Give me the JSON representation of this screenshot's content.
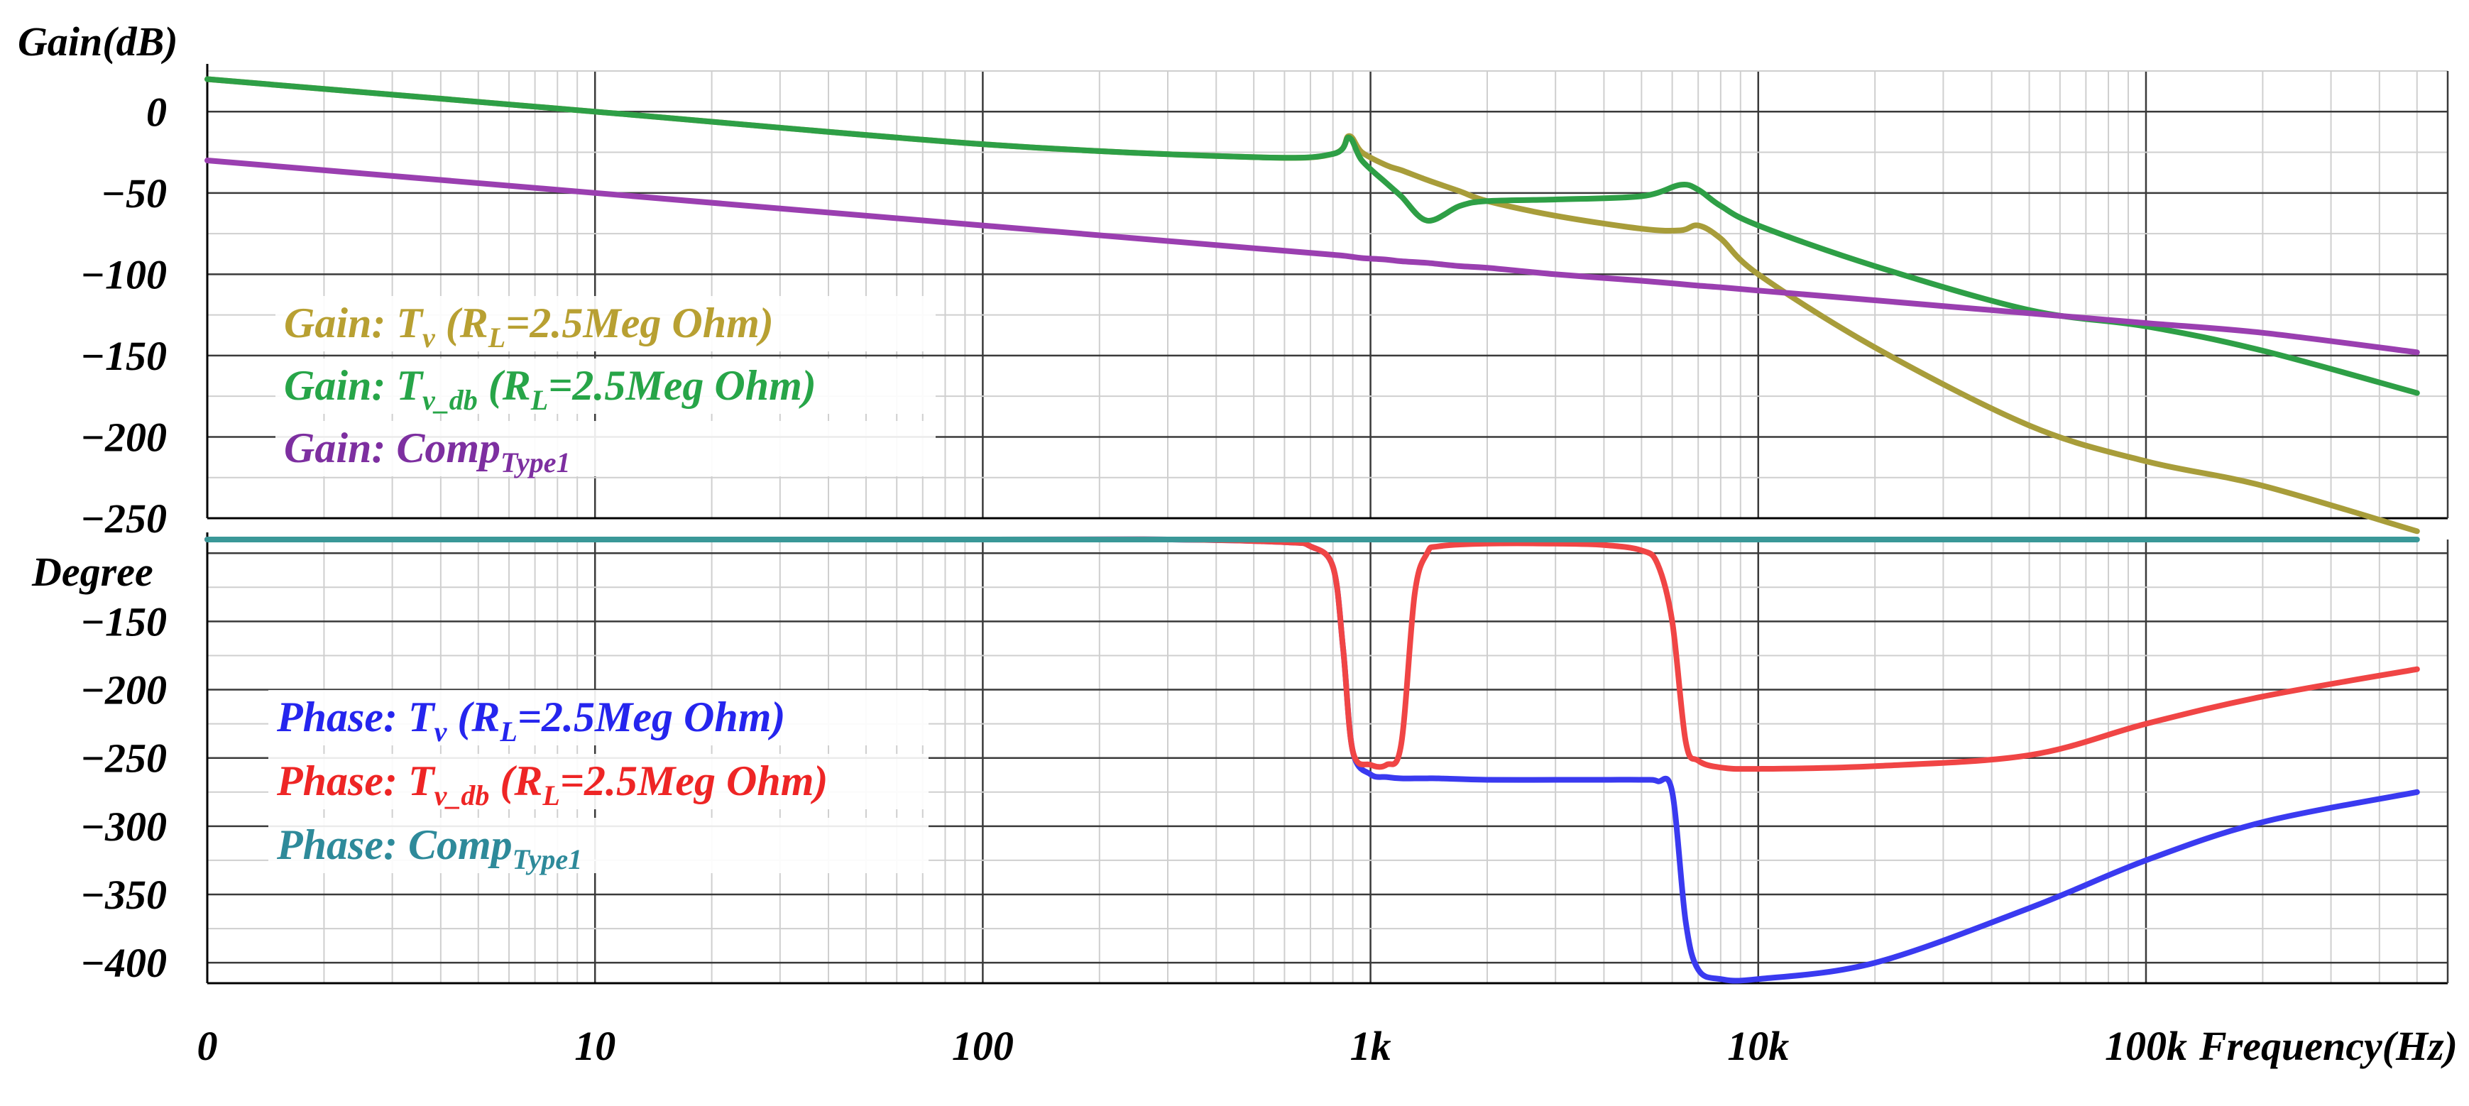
{
  "chart_data": [
    {
      "type": "line",
      "title": "Gain",
      "ylabel": "Gain(dB)",
      "xlabel": "",
      "x_scale": "log",
      "x": [
        1,
        10,
        100,
        500,
        800,
        880,
        950,
        1100,
        1200,
        1400,
        1700,
        2000,
        3000,
        5000,
        6300,
        7000,
        8000,
        10000,
        20000,
        50000,
        100000,
        200000,
        500000
      ],
      "xlim": [
        1,
        600000
      ],
      "ylim": [
        -250,
        25
      ],
      "yticks": [
        0,
        -50,
        -100,
        -150,
        -200,
        -250
      ],
      "ytick_labels": [
        "0",
        "−50",
        "−100",
        "−150",
        "−200",
        "−250"
      ],
      "grid": true,
      "series": [
        {
          "name": "Gain: Tv (RL=2.5Meg Ohm)",
          "color": "#a89d3a",
          "values": [
            20,
            0,
            -20,
            -28,
            -26,
            -15,
            -25,
            -33,
            -36,
            -42,
            -49,
            -55,
            -64,
            -72,
            -73,
            -70,
            -78,
            -100,
            -145,
            -193,
            -215,
            -230,
            -258
          ]
        },
        {
          "name": "Gain: Tv_db (RL=2.5Meg Ohm)",
          "color": "#2e9f46",
          "values": [
            20,
            0,
            -20,
            -28,
            -26,
            -16,
            -30,
            -44,
            -52,
            -67,
            -58,
            -55,
            -54,
            -52,
            -45,
            -48,
            -58,
            -70,
            -95,
            -122,
            -132,
            -147,
            -173
          ]
        },
        {
          "name": "Gain: CompType1",
          "color": "#9a3fb0",
          "values": [
            -30,
            -50,
            -70,
            -84,
            -88,
            -89,
            -90,
            -91,
            -92,
            -93,
            -95,
            -96,
            -100,
            -104,
            -106,
            -107,
            -108,
            -110,
            -116,
            -124,
            -130,
            -136,
            -148
          ]
        }
      ]
    },
    {
      "type": "line",
      "title": "Phase",
      "ylabel": "Degree",
      "xlabel": "Frequency(Hz)",
      "x_scale": "log",
      "x": [
        1,
        10,
        100,
        300,
        600,
        700,
        800,
        850,
        900,
        1000,
        1100,
        1200,
        1300,
        1400,
        1500,
        2000,
        3000,
        4000,
        5000,
        5500,
        6000,
        6500,
        7000,
        8000,
        10000,
        20000,
        50000,
        100000,
        200000,
        500000
      ],
      "xlim": [
        1,
        600000
      ],
      "ylim": [
        -415,
        -90
      ],
      "yticks": [
        -150,
        -200,
        -250,
        -300,
        -350,
        -400
      ],
      "ytick_labels": [
        "−150",
        "−200",
        "−250",
        "−300",
        "−350",
        "−400"
      ],
      "xticks": [
        1,
        10,
        100,
        1000,
        10000,
        100000
      ],
      "xtick_labels": [
        "0",
        "10",
        "100",
        "1k",
        "10k",
        "100k"
      ],
      "grid": true,
      "series": [
        {
          "name": "Phase: Tv (RL=2.5Meg Ohm)",
          "color": "#3a3af0",
          "values": [
            -90,
            -90,
            -90,
            -90,
            -92,
            -95,
            -110,
            -170,
            -245,
            -262,
            -264,
            -265,
            -265,
            -265,
            -265,
            -266,
            -266,
            -266,
            -266,
            -267,
            -275,
            -370,
            -405,
            -412,
            -412,
            -400,
            -360,
            -325,
            -297,
            -275
          ]
        },
        {
          "name": "Phase: Tv_db (RL=2.5Meg Ohm)",
          "color": "#f04545",
          "values": [
            -90,
            -90,
            -90,
            -90,
            -92,
            -95,
            -110,
            -170,
            -245,
            -255,
            -255,
            -240,
            -130,
            -100,
            -95,
            -93,
            -93,
            -94,
            -98,
            -108,
            -150,
            -238,
            -252,
            -257,
            -258,
            -256,
            -248,
            -225,
            -205,
            -185
          ]
        },
        {
          "name": "Phase: CompType1",
          "color": "#3a9898",
          "values": [
            -90,
            -90,
            -90,
            -90,
            -90,
            -90,
            -90,
            -90,
            -90,
            -90,
            -90,
            -90,
            -90,
            -90,
            -90,
            -90,
            -90,
            -90,
            -90,
            -90,
            -90,
            -90,
            -90,
            -90,
            -90,
            -90,
            -90,
            -90,
            -90,
            -90
          ]
        }
      ]
    }
  ],
  "legend_top": [
    {
      "main": "Gain: T",
      "sub": "v",
      "rest": " (R",
      "rsub": "L",
      "tail": "=2.5Meg Ohm)",
      "color": "#b8a032"
    },
    {
      "main": "Gain: T",
      "sub": "v_db",
      "rest": " (R",
      "rsub": "L",
      "tail": "=2.5Meg Ohm)",
      "color": "#27a548"
    },
    {
      "main": "Gain: Comp",
      "sub": "Type1",
      "rest": "",
      "rsub": "",
      "tail": "",
      "color": "#7d2fa0"
    }
  ],
  "legend_bottom": [
    {
      "main": "Phase: T",
      "sub": "v",
      "rest": " (R",
      "rsub": "L",
      "tail": "=2.5Meg Ohm)",
      "color": "#2525ee"
    },
    {
      "main": "Phase: T",
      "sub": "v_db",
      "rest": " (R",
      "rsub": "L",
      "tail": "=2.5Meg Ohm)",
      "color": "#ee2525"
    },
    {
      "main": "Phase: Comp",
      "sub": "Type1",
      "rest": "",
      "rsub": "",
      "tail": "",
      "color": "#2e8a9a"
    }
  ]
}
